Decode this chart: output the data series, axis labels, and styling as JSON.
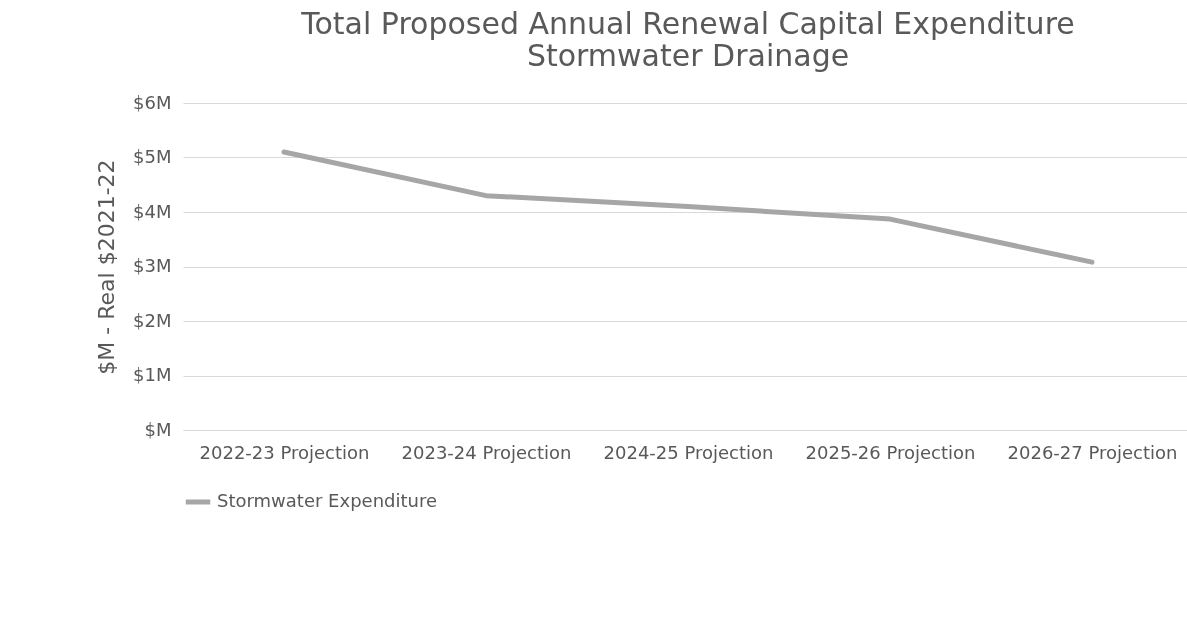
{
  "chart_data": {
    "type": "line",
    "title": "Total Proposed Annual Renewal Capital Expenditure\nStormwater Drainage",
    "ylabel": "$M - Real $2021-22",
    "categories": [
      "2022-23 Projection",
      "2023-24 Projection",
      "2024-25 Projection",
      "2025-26 Projection",
      "2026-27 Projection"
    ],
    "series": [
      {
        "name": "Stormwater Expenditure",
        "color": "#a6a6a6",
        "values": [
          5.1,
          4.3,
          4.1,
          3.87,
          3.08
        ]
      }
    ],
    "ylim": [
      0,
      6
    ],
    "yticks": [
      {
        "value": 0,
        "label": "$M"
      },
      {
        "value": 1,
        "label": "$1M"
      },
      {
        "value": 2,
        "label": "$2M"
      },
      {
        "value": 3,
        "label": "$3M"
      },
      {
        "value": 4,
        "label": "$4M"
      },
      {
        "value": 5,
        "label": "$5M"
      },
      {
        "value": 6,
        "label": "$6M"
      }
    ],
    "grid": "y",
    "legend": "bottom",
    "marker": "none",
    "line_style": "solid"
  }
}
